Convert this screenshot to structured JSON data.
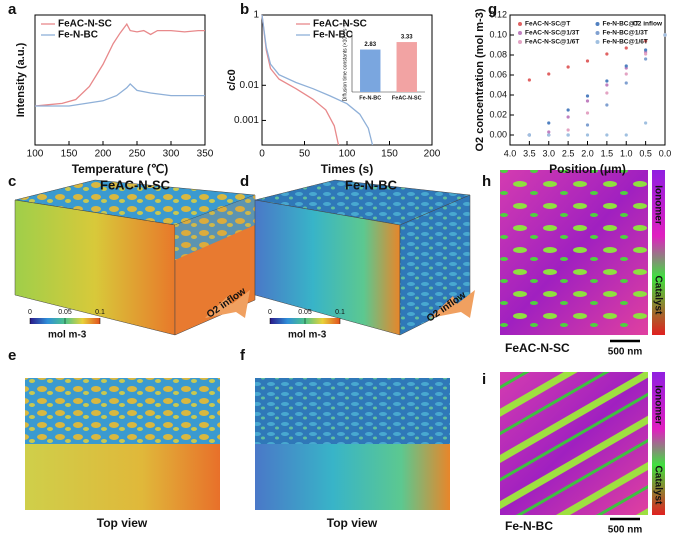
{
  "chart_data": [
    {
      "type": "line",
      "xlabel": "Temperature (℃)",
      "ylabel": "Intensity (a.u.)",
      "xlim": [
        100,
        350
      ],
      "xticks": [
        100,
        150,
        200,
        250,
        300,
        350
      ],
      "ylim": [
        0,
        1
      ],
      "legend": "upper left",
      "series": [
        {
          "name": "FeAC-N-SC",
          "color": "#e8898b",
          "x": [
            100,
            120,
            140,
            160,
            180,
            200,
            215,
            225,
            235,
            240,
            250,
            260,
            270,
            280,
            300,
            320,
            340,
            350
          ],
          "values": [
            0.3,
            0.31,
            0.32,
            0.35,
            0.45,
            0.62,
            0.78,
            0.86,
            0.93,
            0.88,
            0.87,
            0.88,
            0.85,
            0.88,
            0.88,
            0.87,
            0.88,
            0.88
          ]
        },
        {
          "name": "Fe-N-BC",
          "color": "#8fb0d8",
          "x": [
            100,
            150,
            200,
            220,
            235,
            240,
            250,
            270,
            300,
            350
          ],
          "values": [
            0.3,
            0.3,
            0.34,
            0.38,
            0.44,
            0.47,
            0.42,
            0.4,
            0.38,
            0.38
          ]
        }
      ]
    },
    {
      "type": "line",
      "xlabel": "Times (s)",
      "ylabel": "c/c0",
      "log_y": true,
      "xlim": [
        0,
        200
      ],
      "xticks": [
        0,
        50,
        100,
        150,
        200
      ],
      "ylim": [
        0.0002,
        1
      ],
      "yticks": [
        1,
        0.01,
        0.001
      ],
      "legend": "upper center",
      "series": [
        {
          "name": "FeAC-N-SC",
          "color": "#e8898b",
          "x": [
            0,
            5,
            10,
            20,
            40,
            60,
            75,
            85,
            90
          ],
          "values": [
            1,
            0.1,
            0.03,
            0.015,
            0.008,
            0.004,
            0.002,
            0.0007,
            0.0002
          ]
        },
        {
          "name": "Fe-N-BC",
          "color": "#8fb0d8",
          "x": [
            0,
            5,
            10,
            20,
            40,
            60,
            80,
            100,
            115,
            125,
            130
          ],
          "values": [
            1,
            0.12,
            0.04,
            0.02,
            0.012,
            0.008,
            0.005,
            0.003,
            0.0015,
            0.0006,
            0.0002
          ]
        }
      ]
    },
    {
      "type": "bar",
      "ylabel": "Diffusion time constants (×10⁻² s⁻¹)",
      "ylim": [
        0,
        4
      ],
      "categories": [
        "Fe-N-BC",
        "FeAC-N-SC"
      ],
      "values": [
        2.83,
        3.33
      ],
      "colors": [
        "#7aa6df",
        "#f2a3a3"
      ]
    },
    {
      "type": "scatter",
      "xlabel": "Position (μm)",
      "ylabel": "O2 concentration (mol m-3)",
      "xlim": [
        4,
        0
      ],
      "xticks": [
        {
          "value": 4,
          "label": "4.0"
        },
        3.5,
        {
          "value": 3,
          "label": "3.0"
        },
        2.5,
        {
          "value": 2,
          "label": "2.0"
        },
        1.5,
        {
          "value": 1,
          "label": "1.0"
        },
        0.5,
        {
          "value": 0,
          "label": "0.0"
        }
      ],
      "ylim": [
        -0.01,
        0.12
      ],
      "yticks": [
        {
          "value": 0,
          "label": "0.00"
        },
        0.02,
        0.04,
        0.06,
        0.08,
        {
          "value": 0.1,
          "label": "0.10"
        },
        0.12
      ],
      "legend": "upper left",
      "annotation": "O2 inflow",
      "series": [
        {
          "name": "FeAC-N-SC@T",
          "color": "#e06262",
          "x": [
            3.5,
            3,
            2.5,
            2,
            1.5,
            1,
            0.5,
            0
          ],
          "values": [
            0.055,
            0.061,
            0.068,
            0.074,
            0.081,
            0.087,
            0.094,
            0.1
          ]
        },
        {
          "name": "FeAC-N-SC@1/3T",
          "color": "#c080c0",
          "x": [
            3.5,
            3,
            2.5,
            2,
            1.5,
            1,
            0.5,
            0
          ],
          "values": [
            0,
            0.003,
            0.018,
            0.034,
            0.05,
            0.067,
            0.083,
            0.1
          ]
        },
        {
          "name": "FeAC-N-SC@1/6T",
          "color": "#e3a3c3",
          "x": [
            3.5,
            3,
            2.5,
            2,
            1.5,
            1,
            0.5,
            0
          ],
          "values": [
            0,
            0,
            0.005,
            0.022,
            0.042,
            0.061,
            0.081,
            0.1
          ]
        },
        {
          "name": "Fe-N-BC@T",
          "color": "#5080c0",
          "x": [
            3.5,
            3,
            2.5,
            2,
            1.5,
            1,
            0.5,
            0
          ],
          "values": [
            0,
            0.012,
            0.025,
            0.039,
            0.054,
            0.069,
            0.085,
            0.1
          ]
        },
        {
          "name": "Fe-N-BC@1/3T",
          "color": "#80a0d0",
          "x": [
            3.5,
            3,
            2.5,
            2,
            1.5,
            1,
            0.5,
            0
          ],
          "values": [
            0,
            0,
            0,
            0.01,
            0.03,
            0.052,
            0.076,
            0.1
          ]
        },
        {
          "name": "Fe-N-BC@1/6T",
          "color": "#a0c0e0",
          "x": [
            3.5,
            3,
            2.5,
            2,
            1.5,
            1,
            0.5,
            0
          ],
          "values": [
            0,
            0,
            0,
            0,
            0,
            0,
            0.012,
            0.1
          ]
        }
      ]
    }
  ],
  "panels": {
    "letters": [
      "a",
      "b",
      "g",
      "c",
      "d",
      "h",
      "e",
      "f",
      "i"
    ],
    "c": {
      "label": "FeAC-N-SC",
      "colorbar_lim": [
        0,
        0.1
      ],
      "colorbar_ticks": [
        0,
        0.05,
        0.1
      ],
      "unit": "mol m-3",
      "inflow": "O2 inflow"
    },
    "d": {
      "label": "Fe-N-BC",
      "colorbar_lim": [
        0,
        0.1
      ],
      "colorbar_ticks": [
        0,
        0.05,
        0.1
      ],
      "unit": "mol m-3",
      "inflow": "O2 inflow"
    },
    "e": {
      "caption": "Top view"
    },
    "f": {
      "caption": "Top view"
    },
    "h": {
      "label": "FeAC-N-SC",
      "scale": "500 nm",
      "bar_top": "Ionomer",
      "bar_bottom": "Catalyst"
    },
    "i": {
      "label": "Fe-N-BC",
      "scale": "500 nm",
      "bar_top": "Ionomer",
      "bar_bottom": "Catalyst"
    }
  }
}
